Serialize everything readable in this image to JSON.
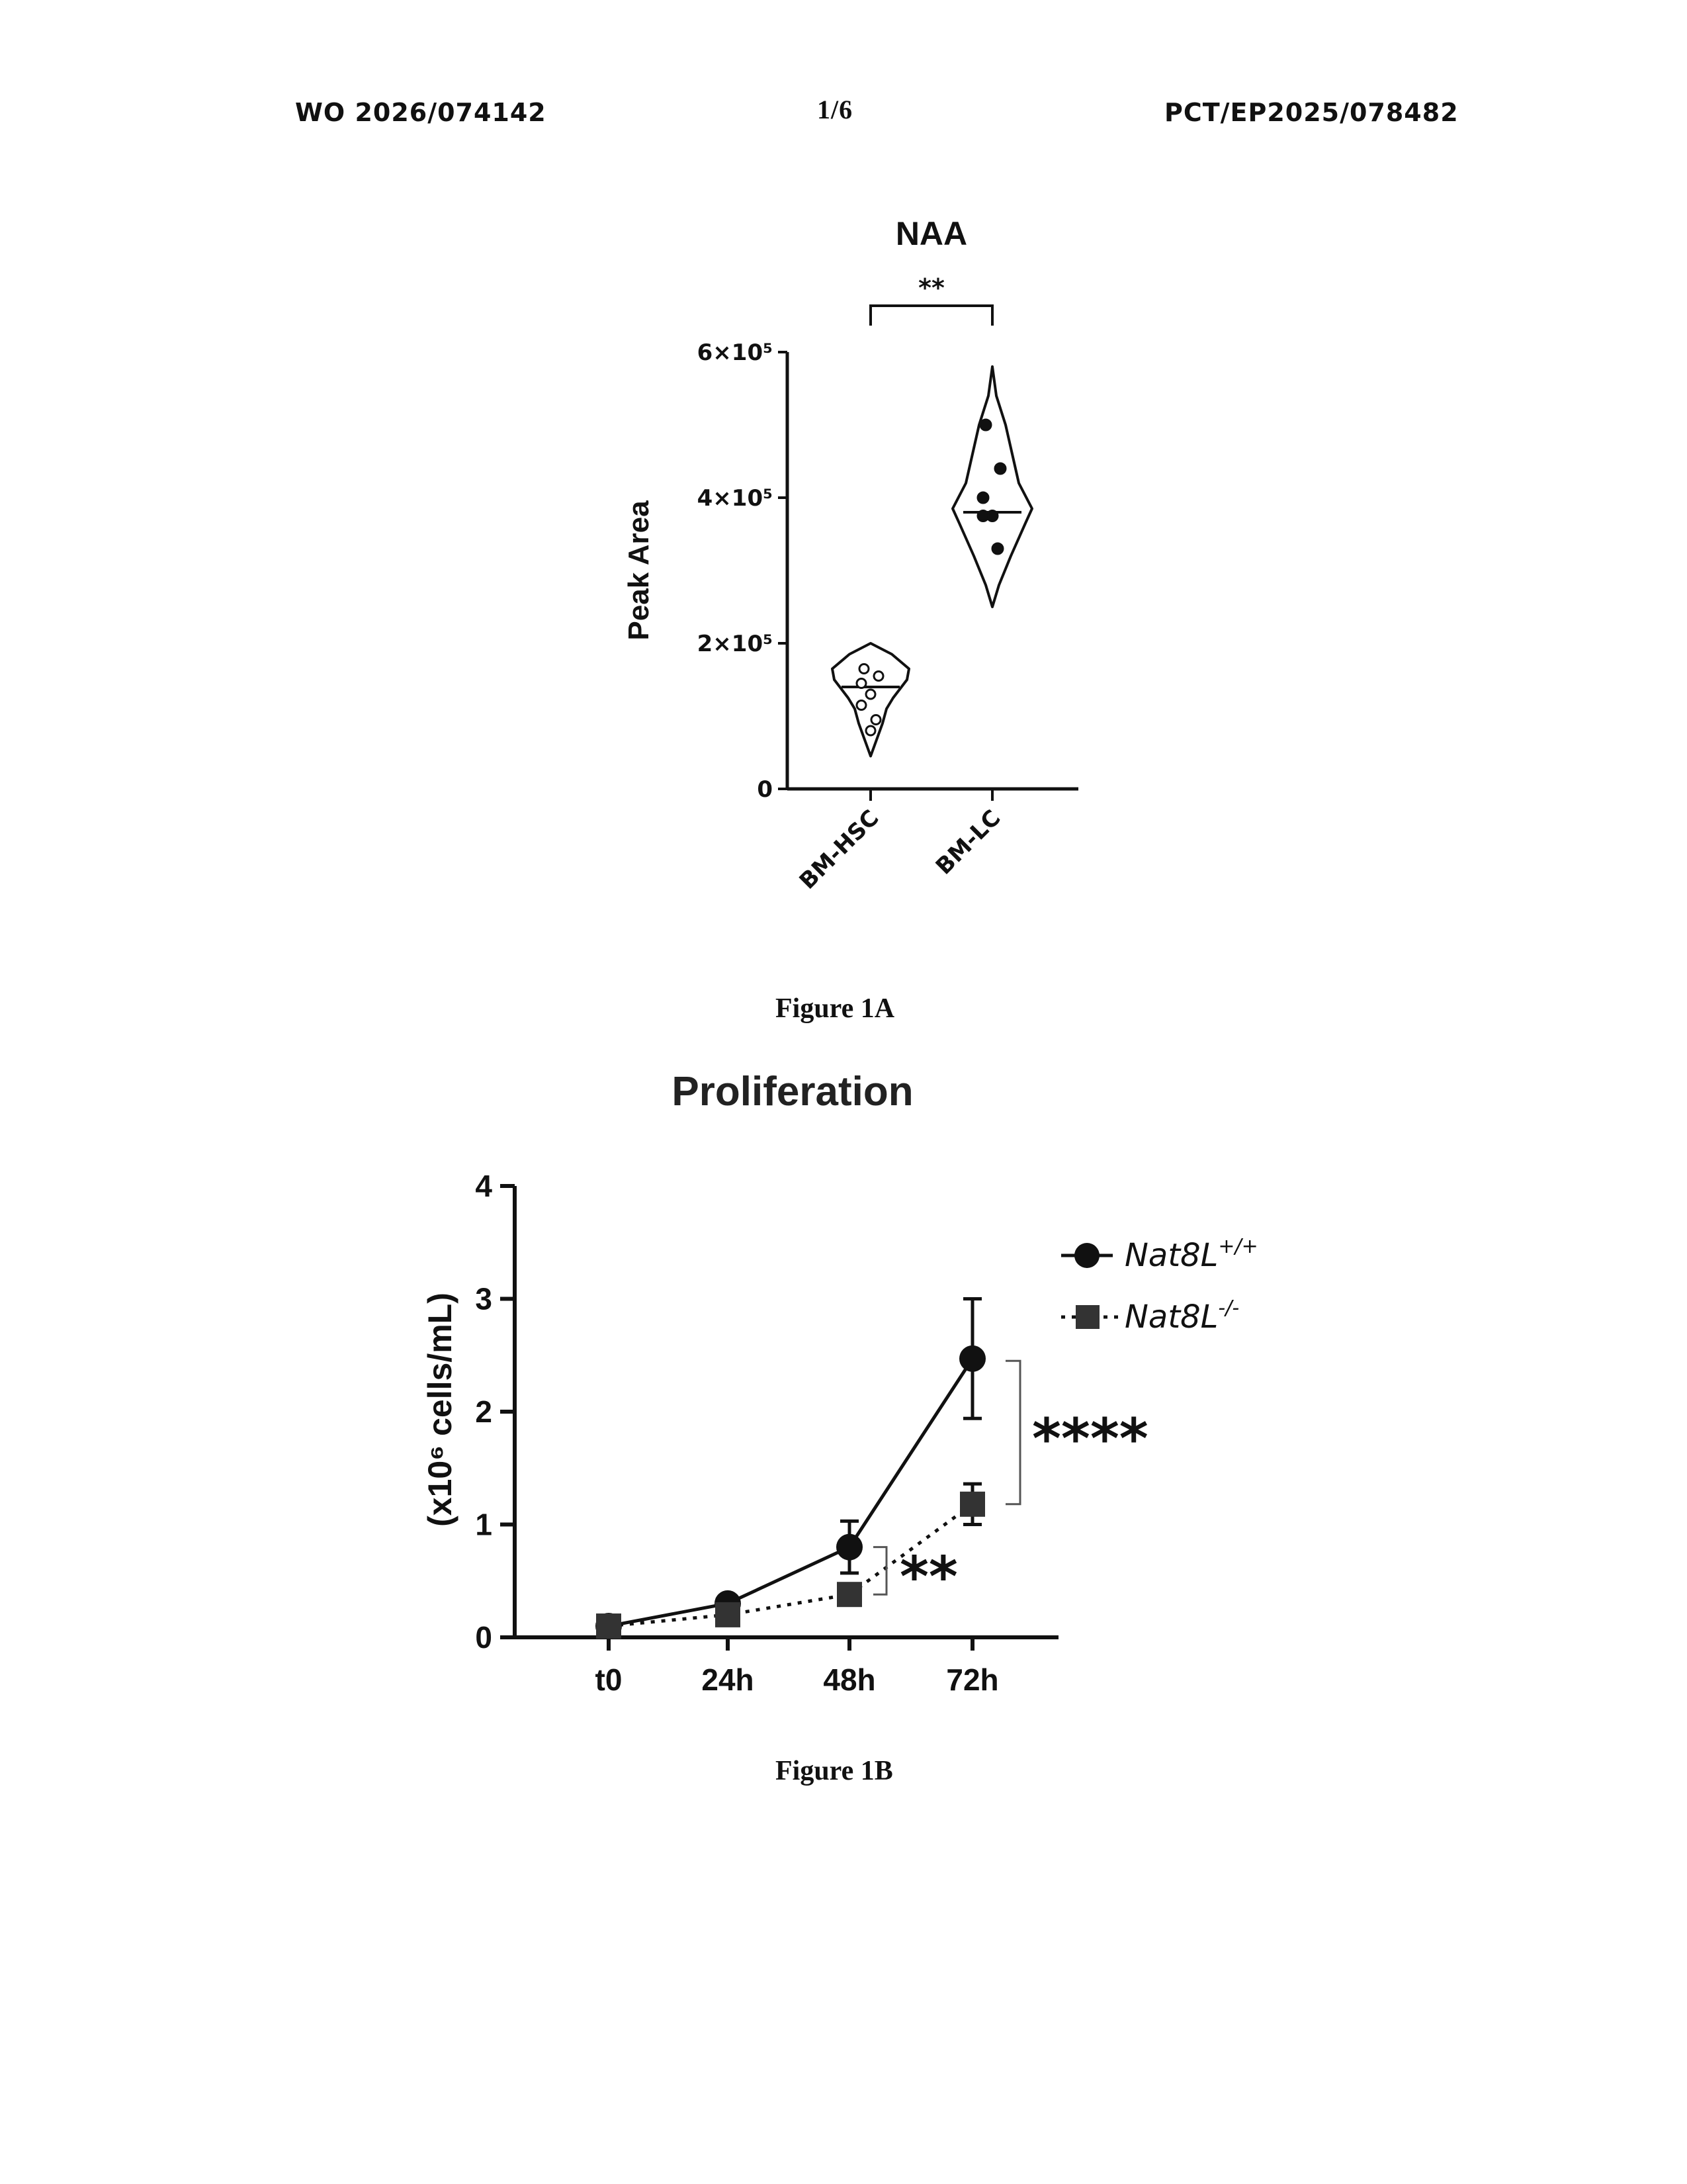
{
  "header": {
    "publication_number": "WO 2026/074142",
    "page": "1/6",
    "application_number": "PCT/EP2025/078482"
  },
  "figures": {
    "fig1a_caption": "Figure 1A",
    "fig1b_caption": "Figure 1B"
  },
  "chart_data": [
    {
      "type": "violin",
      "title": "NAA",
      "ylabel": "Peak Area",
      "xlabel": "",
      "ylim": [
        0,
        600000
      ],
      "yticks": [
        {
          "value": 0,
          "label": "0"
        },
        {
          "value": 200000,
          "label": "2×10⁵"
        },
        {
          "value": 400000,
          "label": "4×10⁵"
        },
        {
          "value": 600000,
          "label": "6×10⁵"
        }
      ],
      "categories": [
        "BM-HSC",
        "BM-LC"
      ],
      "series": [
        {
          "category": "BM-HSC",
          "points": [
            165000,
            155000,
            145000,
            130000,
            115000,
            95000,
            80000
          ],
          "median": 140000,
          "min": 45000,
          "max": 200000
        },
        {
          "category": "BM-LC",
          "points": [
            500000,
            440000,
            400000,
            375000,
            375000,
            330000
          ],
          "median": 380000,
          "min": 250000,
          "max": 580000
        }
      ],
      "significance": [
        {
          "between": [
            "BM-HSC",
            "BM-LC"
          ],
          "label": "**"
        }
      ]
    },
    {
      "type": "line",
      "title": "Proliferation",
      "ylabel": "(x10⁶ cells/mL)",
      "xlabel": "",
      "ylim": [
        0,
        4
      ],
      "yticks": [
        "0",
        "1",
        "2",
        "3",
        "4"
      ],
      "categories": [
        "t0",
        "24h",
        "48h",
        "72h"
      ],
      "series": [
        {
          "name": "Nat8L+/+",
          "values": [
            0.1,
            0.3,
            0.8,
            2.47
          ],
          "errors": [
            0.0,
            0.03,
            0.23,
            0.53
          ],
          "marker": "circle",
          "line": "solid"
        },
        {
          "name": "Nat8L-/-",
          "values": [
            0.1,
            0.2,
            0.38,
            1.18
          ],
          "errors": [
            0.0,
            0.03,
            0.05,
            0.18
          ],
          "marker": "square",
          "line": "dotted"
        }
      ],
      "legend": {
        "position": "top-right",
        "entries": [
          {
            "base": "Nat8L",
            "sup": "+/+"
          },
          {
            "base": "Nat8L",
            "sup": "-/-"
          }
        ]
      },
      "significance": [
        {
          "at": "72h",
          "label": "****"
        },
        {
          "at": "48h",
          "label": "**"
        }
      ]
    }
  ]
}
